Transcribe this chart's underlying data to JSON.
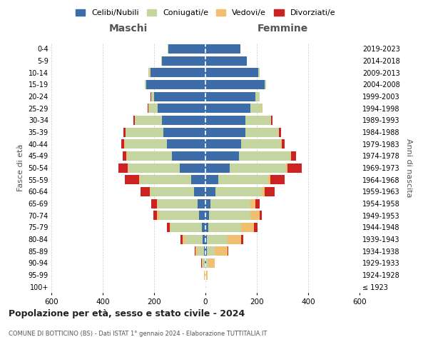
{
  "age_groups": [
    "100+",
    "95-99",
    "90-94",
    "85-89",
    "80-84",
    "75-79",
    "70-74",
    "65-69",
    "60-64",
    "55-59",
    "50-54",
    "45-49",
    "40-44",
    "35-39",
    "30-34",
    "25-29",
    "20-24",
    "15-19",
    "10-14",
    "5-9",
    "0-4"
  ],
  "birth_years": [
    "≤ 1923",
    "1924-1928",
    "1929-1933",
    "1934-1938",
    "1939-1943",
    "1944-1948",
    "1949-1953",
    "1954-1958",
    "1959-1963",
    "1964-1968",
    "1969-1973",
    "1974-1978",
    "1979-1983",
    "1984-1988",
    "1989-1993",
    "1994-1998",
    "1999-2003",
    "2004-2008",
    "2009-2013",
    "2014-2018",
    "2019-2023"
  ],
  "colors": {
    "celibi": "#3d6da8",
    "coniugati": "#c5d5a0",
    "vedovi": "#f0c070",
    "divorziati": "#cc2222"
  },
  "maschi": {
    "celibi": [
      0,
      1,
      2,
      5,
      10,
      15,
      25,
      30,
      45,
      55,
      100,
      130,
      150,
      165,
      170,
      185,
      200,
      230,
      215,
      170,
      145
    ],
    "coniugati": [
      0,
      2,
      8,
      25,
      70,
      120,
      155,
      155,
      170,
      200,
      200,
      175,
      165,
      145,
      105,
      35,
      10,
      5,
      5,
      2,
      2
    ],
    "vedovi": [
      0,
      2,
      5,
      10,
      10,
      5,
      8,
      5,
      3,
      3,
      3,
      2,
      1,
      1,
      1,
      1,
      1,
      1,
      1,
      0,
      0
    ],
    "divorziati": [
      0,
      0,
      1,
      2,
      8,
      10,
      15,
      20,
      35,
      55,
      35,
      15,
      12,
      8,
      5,
      3,
      2,
      1,
      1,
      0,
      0
    ]
  },
  "femmine": {
    "celibi": [
      0,
      1,
      2,
      5,
      5,
      10,
      15,
      20,
      40,
      50,
      95,
      130,
      140,
      155,
      155,
      175,
      195,
      230,
      205,
      160,
      135
    ],
    "coniugati": [
      0,
      3,
      8,
      30,
      80,
      130,
      160,
      155,
      180,
      195,
      220,
      200,
      155,
      130,
      100,
      45,
      15,
      5,
      5,
      2,
      2
    ],
    "vedovi": [
      1,
      5,
      25,
      50,
      55,
      50,
      35,
      20,
      10,
      8,
      5,
      3,
      2,
      1,
      1,
      1,
      1,
      1,
      0,
      0,
      0
    ],
    "divorziati": [
      0,
      0,
      1,
      3,
      8,
      12,
      10,
      15,
      40,
      55,
      55,
      20,
      12,
      8,
      4,
      2,
      1,
      1,
      0,
      0,
      0
    ]
  },
  "xlim": 600,
  "title_main": "Popolazione per età, sesso e stato civile - 2024",
  "title_sub": "COMUNE DI BOTTICINO (BS) - Dati ISTAT 1° gennaio 2024 - Elaborazione TUTTITALIA.IT",
  "ylabel_left": "Fasce di età",
  "ylabel_right": "Anni di nascita",
  "xlabel_maschi": "Maschi",
  "xlabel_femmine": "Femmine",
  "legend_labels": [
    "Celibi/Nubili",
    "Coniugati/e",
    "Vedovi/e",
    "Divorziati/e"
  ],
  "background_color": "#ffffff",
  "grid_color": "#cccccc"
}
